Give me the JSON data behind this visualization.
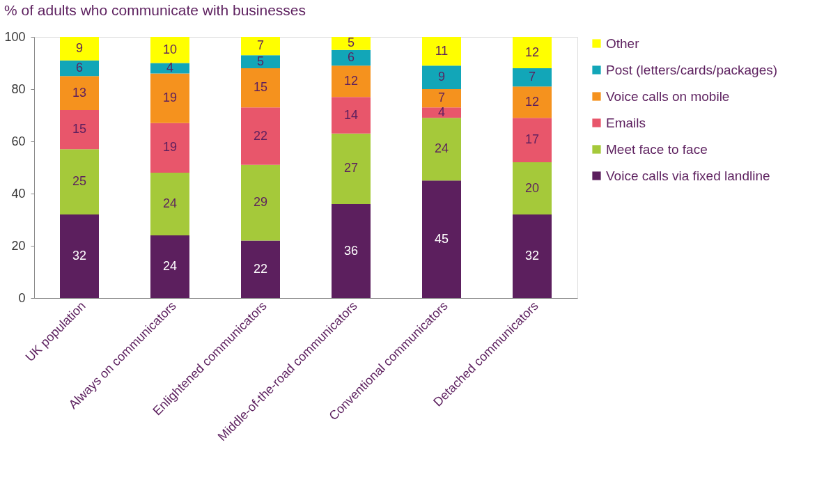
{
  "chart_data": {
    "type": "bar",
    "title": "% of adults who communicate with businesses",
    "stacked": true,
    "data_labels": true,
    "legend": "right",
    "grid": false,
    "categories": [
      "UK population",
      "Always on communicators",
      "Enlightened communicators",
      "Middle-of-the-road communicators",
      "Conventional communicators",
      "Detached communicators"
    ],
    "ylim": [
      0,
      100
    ],
    "yticks": [
      0,
      20,
      40,
      60,
      80,
      100
    ],
    "series": [
      {
        "name": "Voice calls via fixed landline",
        "color": "#5c1f5e",
        "values": [
          32,
          24,
          22,
          36,
          45,
          32
        ]
      },
      {
        "name": "Meet face to face",
        "color": "#a5c93a",
        "values": [
          25,
          24,
          29,
          27,
          24,
          20
        ]
      },
      {
        "name": "Emails",
        "color": "#e8566b",
        "values": [
          15,
          19,
          22,
          14,
          4,
          17
        ]
      },
      {
        "name": "Voice calls on mobile",
        "color": "#f5921e",
        "values": [
          13,
          19,
          15,
          12,
          7,
          12
        ]
      },
      {
        "name": "Post (letters/cards/packages)",
        "color": "#12a6b8",
        "values": [
          6,
          4,
          5,
          6,
          9,
          7
        ]
      },
      {
        "name": "Other",
        "color": "#ffff00",
        "values": [
          9,
          10,
          7,
          5,
          11,
          12
        ]
      }
    ]
  }
}
